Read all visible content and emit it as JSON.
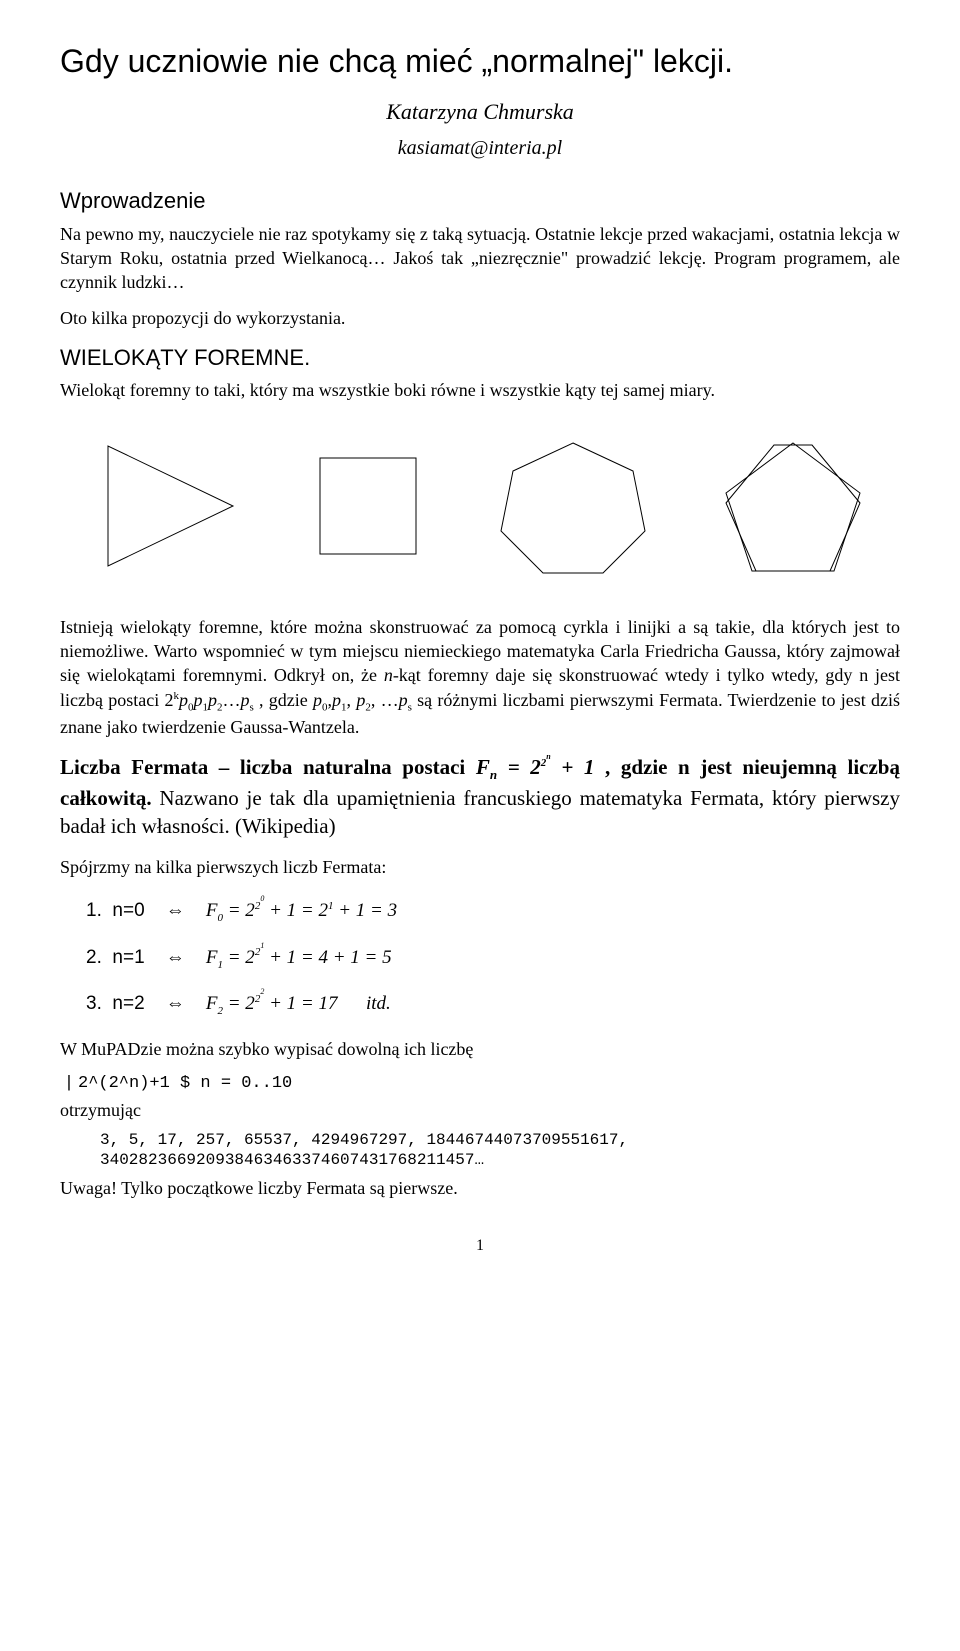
{
  "title": "Gdy uczniowie nie chcą mieć „normalnej\" lekcji.",
  "author": "Katarzyna Chmurska",
  "email": "kasiamat@interia.pl",
  "intro_heading": "Wprowadzenie",
  "intro_p1": "Na pewno my, nauczyciele nie raz spotykamy się z taką sytuacją. Ostatnie lekcje przed wakacjami, ostatnia lekcja w Starym Roku, ostatnia przed Wielkanocą… Jakoś tak „niezręcznie\" prowadzić lekcję. Program programem, ale czynnik ludzki…",
  "intro_p2": "Oto kilka propozycji do wykorzystania.",
  "section2_heading": "WIELOKĄTY FOREMNE.",
  "section2_p1": "Wielokąt foremny to taki, który ma wszystkie boki równe i wszystkie kąty tej samej miary.",
  "shapes": {
    "stroke": "#000000",
    "stroke_width": 1,
    "fill": "none",
    "items": [
      "triangle",
      "square",
      "heptagon",
      "pentagon"
    ]
  },
  "gauss_p_a": "Istnieją wielokąty foremne, które można skonstruować za pomocą cyrkla i linijki a są takie, dla których jest to niemożliwe. Warto wspomnieć w tym miejscu niemieckiego matematyka Carla Friedricha Gaussa, który zajmował się wielokątami foremnymi. Odkrył on, że ",
  "gauss_italic_1": "n",
  "gauss_p_b": "-kąt foremny daje się skonstruować wtedy i tylko wtedy, gdy n jest liczbą postaci ",
  "gauss_form_html": "2<span class='sup'>k</span><i>p</i><span class='sub'>0</span><i>p</i><span class='sub'>1</span><i>p</i><span class='sub'>2</span>…<i>p</i><span class='sub'>s</span>",
  "gauss_p_c": " , gdzie ",
  "gauss_vars_html": "<i>p</i><span class='sub'>0</span>,<i>p</i><span class='sub'>1</span>, <i>p</i><span class='sub'>2</span>, …<i>p</i><span class='sub'>s</span>",
  "gauss_p_d": " są różnymi liczbami pierwszymi Fermata. Twierdzenie to jest dziś znane jako twierdzenie Gaussa-Wantzela.",
  "fermat_def_a": "Liczba Fermata – liczba naturalna postaci ",
  "fermat_def_formula": "F<sub style='font-size:13px;'>n</sub> = 2<span class='sup'>2<span class='supsup'>n</span></span> + 1",
  "fermat_def_b": " , gdzie n jest nieujemną liczbą całkowitą.",
  "fermat_def_c": " Nazwano je tak dla upamiętnienia francuskiego matematyka Fermata, który pierwszy badał ich własności. (Wikipedia)",
  "look_prompt": "Spójrzmy na kilka pierwszych liczb Fermata:",
  "formulas": [
    {
      "num": "1.",
      "lhs": "n=0",
      "rhs": "F<span class='sub'>0</span> = 2<span class='sup'>2<span class='supsup'>0</span></span> + 1 = 2<span class='sup'>1</span> + 1 = 3"
    },
    {
      "num": "2.",
      "lhs": "n=1",
      "rhs": "F<span class='sub'>1</span> = 2<span class='sup'>2<span class='supsup'>1</span></span> + 1 = 4 + 1 = 5"
    },
    {
      "num": "3.",
      "lhs": "n=2",
      "rhs": "F<span class='sub'>2</span> = 2<span class='sup'>2<span class='supsup'>2</span></span> + 1 = 17 &nbsp;&nbsp;&nbsp;&nbsp; itd."
    }
  ],
  "mupad_line": "W MuPADzie można szybko wypisać dowolną ich liczbę",
  "code_line": "2^(2^n)+1 $ n = 0..10",
  "receiving_label": "otrzymując",
  "output_numbers": "3, 5, 17, 257, 65537, 4294967297, 18446744073709551617, 340282366920938463463374607431768211457…",
  "warning": "Uwaga! Tylko początkowe liczby Fermata są pierwsze.",
  "page_number": "1"
}
